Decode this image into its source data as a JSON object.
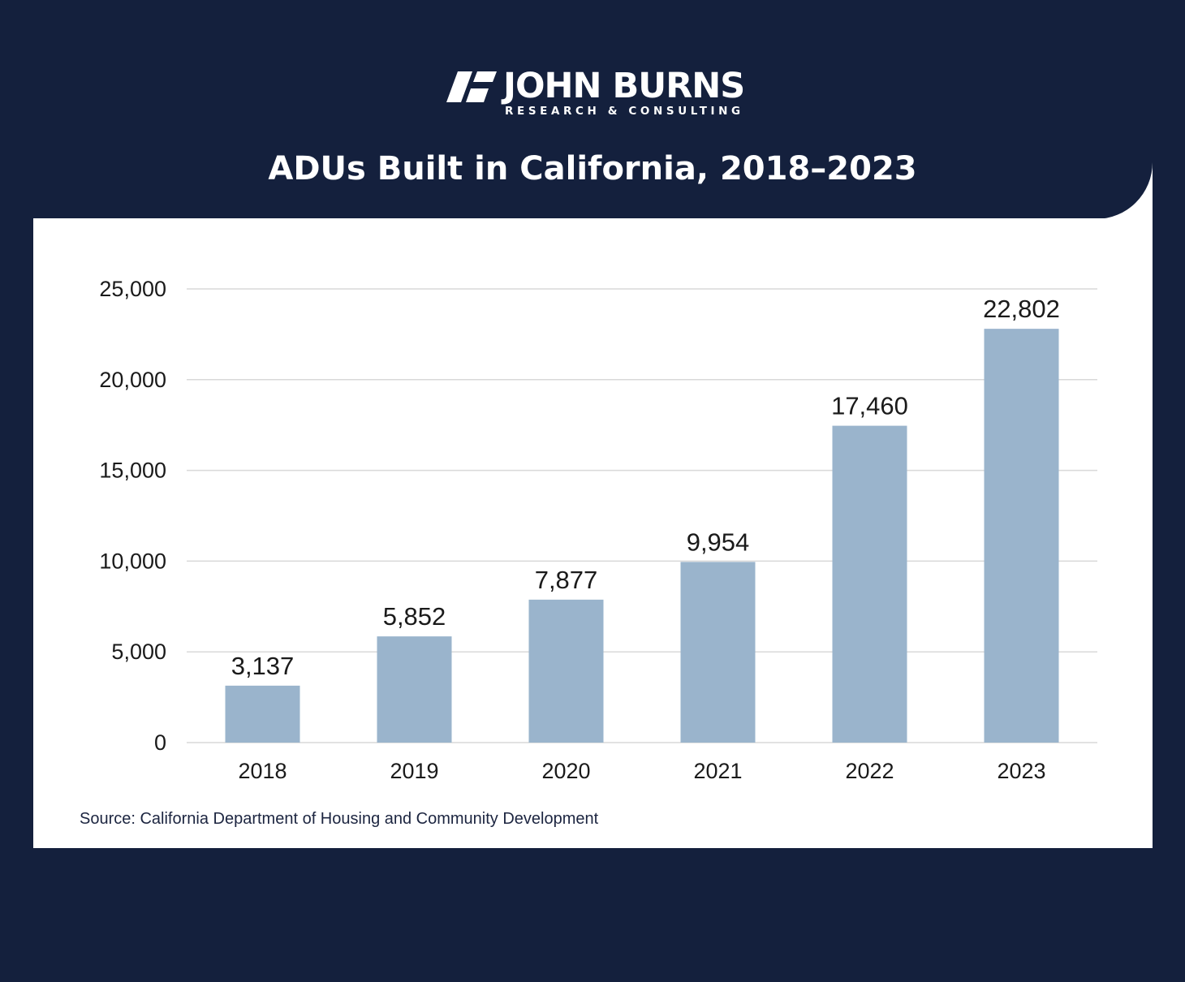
{
  "brand": {
    "name": "JOHN BURNS",
    "tagline": "RESEARCH & CONSULTING"
  },
  "colors": {
    "background": "#14203d",
    "card": "#ffffff",
    "bar": "#9ab4cc",
    "grid": "#d9d9d9"
  },
  "chart_data": {
    "type": "bar",
    "title": "ADUs Built in California, 2018–2023",
    "categories": [
      "2018",
      "2019",
      "2020",
      "2021",
      "2022",
      "2023"
    ],
    "values": [
      3137,
      5852,
      7877,
      9954,
      17460,
      22802
    ],
    "data_labels": [
      "3,137",
      "5,852",
      "7,877",
      "9,954",
      "17,460",
      "22,802"
    ],
    "y_ticks": [
      0,
      5000,
      10000,
      15000,
      20000,
      25000
    ],
    "y_tick_labels": [
      "0",
      "5,000",
      "10,000",
      "15,000",
      "20,000",
      "25,000"
    ],
    "ylim": [
      0,
      25000
    ],
    "xlabel": "",
    "ylabel": "",
    "grid": true,
    "legend": "none",
    "source": "Source: California Department of Housing and Community Development"
  }
}
